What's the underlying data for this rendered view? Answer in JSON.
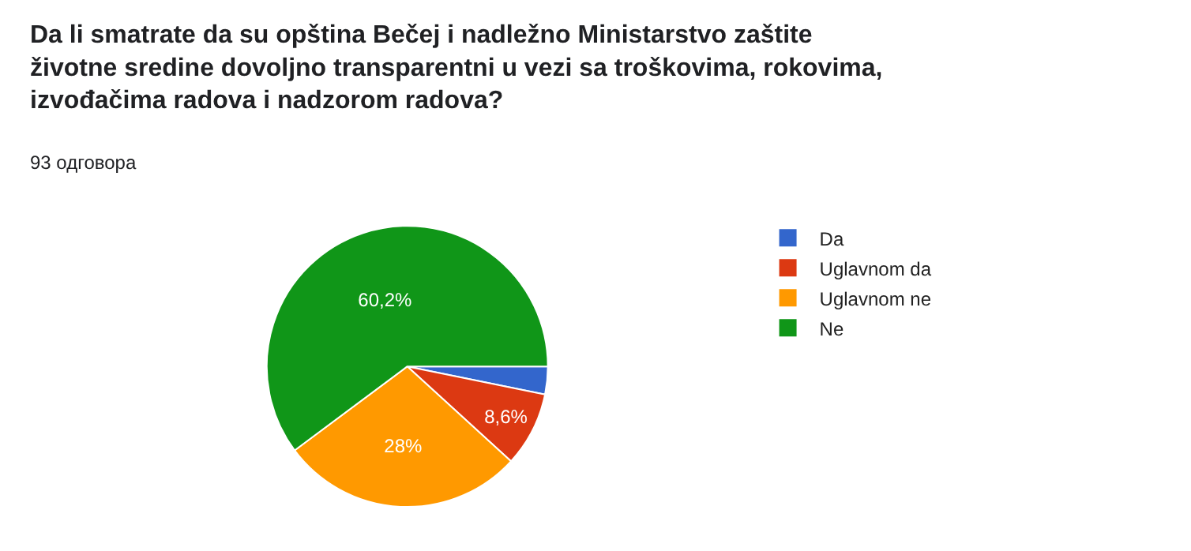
{
  "chart_data": {
    "type": "pie",
    "title": "Da li smatrate da su opština Bečej i nadležno Ministarstvo zaštite životne sredine dovoljno transparentni u vezi sa troškovima, rokovima, izvođačima radova i nadzorom radova?",
    "subtitle": "93 одговора",
    "categories": [
      "Da",
      "Uglavnom da",
      "Uglavnom ne",
      "Ne"
    ],
    "values": [
      3.2,
      8.6,
      28,
      60.2
    ],
    "value_labels": [
      null,
      "8,6%",
      "28%",
      "60,2%"
    ],
    "colors": [
      "#3366cc",
      "#dc3912",
      "#ff9900",
      "#109618"
    ],
    "legend": "right"
  }
}
